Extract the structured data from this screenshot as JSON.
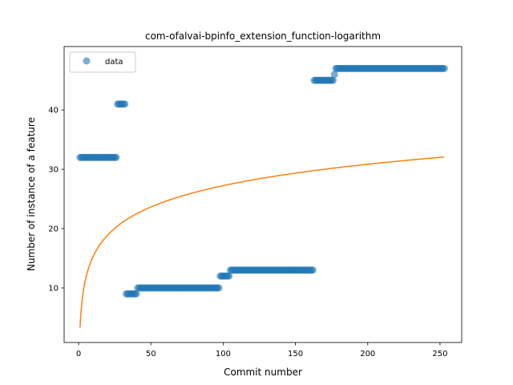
{
  "chart_data": {
    "type": "scatter",
    "title": "com-ofalvai-bpinfo_extension_function-logarithm",
    "xlabel": "Commit number",
    "ylabel": "Number of instance of a feature",
    "xlim": [
      -10,
      265
    ],
    "ylim": [
      0.8,
      50.7
    ],
    "xticks": [
      0,
      50,
      100,
      150,
      200,
      250
    ],
    "yticks": [
      10,
      20,
      30,
      40
    ],
    "grid": false,
    "legend": {
      "placement": "top-left",
      "entries": [
        "data"
      ]
    },
    "colors": {
      "data": "#1f77b4",
      "fit": "#ff7f0e"
    },
    "series": [
      {
        "name": "data",
        "kind": "scatter",
        "segments": [
          {
            "x_start": 1,
            "x_end": 26,
            "y": 32
          },
          {
            "x_start": 27,
            "x_end": 32,
            "y": 41
          },
          {
            "x_start": 33,
            "x_end": 40,
            "y": 9
          },
          {
            "x_start": 41,
            "x_end": 97,
            "y": 10
          },
          {
            "x_start": 98,
            "x_end": 104,
            "y": 12
          },
          {
            "x_start": 105,
            "x_end": 162,
            "y": 13
          },
          {
            "x_start": 163,
            "x_end": 176,
            "y": 45
          },
          {
            "x_start": 177,
            "x_end": 177,
            "y": 46
          },
          {
            "x_start": 178,
            "x_end": 253,
            "y": 47
          }
        ]
      },
      {
        "kind": "line",
        "model": "logarithm",
        "a": 3.3,
        "b": 5.2,
        "x_range": [
          1,
          253
        ]
      }
    ]
  }
}
